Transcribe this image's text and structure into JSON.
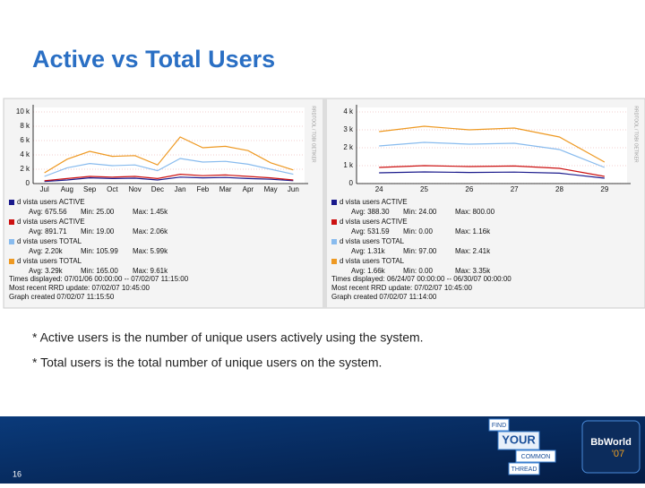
{
  "title": "Active vs Total Users",
  "chart_data": [
    {
      "type": "line",
      "categories": [
        "Jul",
        "Aug",
        "Sep",
        "Oct",
        "Nov",
        "Dec",
        "Jan",
        "Feb",
        "Mar",
        "Apr",
        "May",
        "Jun"
      ],
      "ylim": [
        0,
        10000
      ],
      "yticks": [
        0,
        {
          "value": 2000,
          "label": "2 k"
        },
        {
          "value": 4000,
          "label": "4 k"
        },
        {
          "value": 6000,
          "label": "6 k"
        },
        {
          "value": 8000,
          "label": "8 k"
        },
        {
          "value": 10000,
          "label": "10 k"
        }
      ],
      "grid": true,
      "side_text": "RRDTOOL / TOBI OETIKER",
      "series": [
        {
          "name": "d vista users ACTIVE",
          "color": "#1a1a8c",
          "values": [
            300,
            500,
            800,
            700,
            750,
            500,
            900,
            800,
            850,
            700,
            600,
            400
          ],
          "stats": [
            "Avg: 675.56",
            "Min: 25.00",
            "Max: 1.45k"
          ]
        },
        {
          "name": "d vista users ACTIVE",
          "color": "#cc1111",
          "values": [
            400,
            700,
            1000,
            900,
            1000,
            700,
            1300,
            1100,
            1200,
            1000,
            800,
            500
          ],
          "stats": [
            "Avg: 891.71",
            "Min: 19.00",
            "Max: 2.06k"
          ]
        },
        {
          "name": "d vista users TOTAL",
          "color": "#88bbee",
          "values": [
            1000,
            2200,
            2800,
            2500,
            2600,
            1800,
            3500,
            3000,
            3100,
            2700,
            2000,
            1300
          ],
          "stats": [
            "Avg: 2.20k",
            "Min: 105.99",
            "Max: 5.99k"
          ]
        },
        {
          "name": "d vista users TOTAL",
          "color": "#ee9922",
          "values": [
            1500,
            3400,
            4500,
            3800,
            3900,
            2600,
            6500,
            5000,
            5200,
            4600,
            2900,
            1900
          ],
          "stats": [
            "Avg: 3.29k",
            "Min: 165.00",
            "Max: 9.61k"
          ]
        }
      ],
      "footer": [
        "Times displayed: 07/01/06 00:00:00 -- 07/02/07 11:15:00",
        "Most recent RRD update: 07/02/07 10:45:00",
        "Graph created 07/02/07 11:15:50"
      ]
    },
    {
      "type": "line",
      "categories": [
        "24",
        "25",
        "26",
        "27",
        "28",
        "29"
      ],
      "ylim": [
        0,
        4000
      ],
      "yticks": [
        0,
        {
          "value": 1000,
          "label": "1 k"
        },
        {
          "value": 2000,
          "label": "2 k"
        },
        {
          "value": 3000,
          "label": "3 k"
        },
        {
          "value": 4000,
          "label": "4 k"
        }
      ],
      "grid": true,
      "side_text": "RRDTOOL / TOBI OETIKER",
      "series": [
        {
          "name": "d vista users ACTIVE",
          "color": "#1a1a8c",
          "values": [
            600,
            650,
            620,
            640,
            580,
            300
          ],
          "stats": [
            "Avg: 388.30",
            "Min: 24.00",
            "Max: 800.00"
          ]
        },
        {
          "name": "d vista users ACTIVE",
          "color": "#cc1111",
          "values": [
            900,
            1000,
            950,
            980,
            850,
            400
          ],
          "stats": [
            "Avg: 531.59",
            "Min: 0.00",
            "Max: 1.16k"
          ]
        },
        {
          "name": "d vista users TOTAL",
          "color": "#88bbee",
          "values": [
            2100,
            2300,
            2200,
            2250,
            1900,
            900
          ],
          "stats": [
            "Avg: 1.31k",
            "Min: 97.00",
            "Max: 2.41k"
          ]
        },
        {
          "name": "d vista users TOTAL",
          "color": "#ee9922",
          "values": [
            2900,
            3200,
            3000,
            3100,
            2600,
            1200
          ],
          "stats": [
            "Avg: 1.66k",
            "Min: 0.00",
            "Max: 3.35k"
          ]
        }
      ],
      "footer": [
        "Times displayed: 06/24/07 00:00:00 -- 06/30/07 00:00:00",
        "Most recent RRD update: 07/02/07 10:45:00",
        "Graph created 07/02/07 11:14:00"
      ]
    }
  ],
  "notes": [
    "* Active users is the number of unique users actively using the system.",
    "* Total users is the total number of unique users on the system."
  ],
  "slide_number": "16",
  "logo": {
    "words": [
      "FIND",
      "YOUR",
      "COMMON",
      "THREAD"
    ],
    "brand": "BbWorld",
    "year": "'07"
  }
}
